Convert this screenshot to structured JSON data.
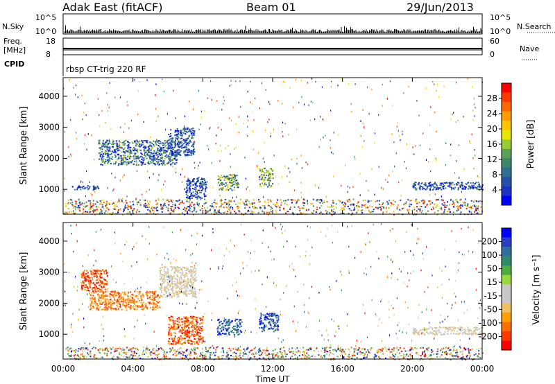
{
  "header": {
    "station": "Adak East (fitACF)",
    "beam": "Beam 01",
    "date": "29/Jun/2013"
  },
  "noise_panel": {
    "left_label": "N.Sky",
    "right_label": "N.Search",
    "left_ticks": [
      "10^5",
      "10^0"
    ],
    "right_ticks": [
      "10^5",
      "10^0"
    ]
  },
  "freq_panel": {
    "left_label_1": "Freq.",
    "left_label_2": "[MHz]",
    "right_label": "Nave",
    "left_ticks": [
      "18",
      "8"
    ],
    "right_ticks": [
      "60",
      "0"
    ]
  },
  "cpid_panel": {
    "label": "CPID",
    "program": "rbsp CT-trig 220 RF"
  },
  "chart_data": [
    {
      "type": "heatmap",
      "name": "power",
      "ylabel": "Slant Range [km]",
      "xlabel": "",
      "yticks": [
        "1000",
        "2000",
        "3000",
        "4000"
      ],
      "ylim": [
        200,
        4600
      ],
      "xlim": [
        0,
        24
      ],
      "colorbar": {
        "label": "Power [dB]",
        "ticks": [
          "28",
          "24",
          "20",
          "16",
          "12",
          "8",
          "4"
        ],
        "colors": [
          "#ff0000",
          "#ff3a00",
          "#ff6a00",
          "#ff9a00",
          "#ffc400",
          "#e6e600",
          "#98cc33",
          "#5aa05a",
          "#3a8a6a",
          "#2f6f8f",
          "#254fa8",
          "#1d33c8",
          "#0000ff"
        ]
      },
      "features": [
        {
          "t0": 0.5,
          "t1": 2.0,
          "r0": 1000,
          "r1": 1150,
          "level": "low"
        },
        {
          "t0": 2.0,
          "t1": 6.5,
          "r0": 1800,
          "r1": 2600,
          "level": "low-mid"
        },
        {
          "t0": 6.0,
          "t1": 7.5,
          "r0": 2100,
          "r1": 3000,
          "level": "low"
        },
        {
          "t0": 7.0,
          "t1": 8.2,
          "r0": 700,
          "r1": 1400,
          "level": "low"
        },
        {
          "t0": 8.8,
          "t1": 10.0,
          "r0": 1000,
          "r1": 1500,
          "level": "mid"
        },
        {
          "t0": 11.2,
          "t1": 12.0,
          "r0": 1100,
          "r1": 1700,
          "level": "mid"
        },
        {
          "t0": 20.0,
          "t1": 24.0,
          "r0": 1000,
          "r1": 1250,
          "level": "low"
        },
        {
          "t0": 0.0,
          "t1": 24.0,
          "r0": 200,
          "r1": 700,
          "level": "mixed"
        }
      ]
    },
    {
      "type": "heatmap",
      "name": "velocity",
      "ylabel": "Slant Range [km]",
      "xlabel": "Time UT",
      "yticks": [
        "1000",
        "2000",
        "3000",
        "4000"
      ],
      "xticks": [
        "00:00",
        "04:00",
        "08:00",
        "12:00",
        "16:00",
        "20:00",
        "00:00"
      ],
      "ylim": [
        200,
        4600
      ],
      "xlim": [
        0,
        24
      ],
      "colorbar": {
        "label": "Velocity [m s⁻¹]",
        "ticks": [
          "200",
          "100",
          "50",
          "15",
          "-15",
          "-50",
          "-100",
          "-200"
        ],
        "colors": [
          "#0000ff",
          "#2a3ec0",
          "#2e6fa0",
          "#2e8a6a",
          "#4cae3c",
          "#9ad83a",
          "#c8c8c8",
          "#c8c8c8",
          "#f0c060",
          "#ffa000",
          "#ff7000",
          "#ff3800",
          "#ff0000"
        ]
      },
      "features": [
        {
          "t0": 1.0,
          "t1": 2.5,
          "r0": 2400,
          "r1": 3100,
          "level": "neg-high"
        },
        {
          "t0": 1.5,
          "t1": 5.5,
          "r0": 1800,
          "r1": 2400,
          "level": "neg-mid"
        },
        {
          "t0": 5.5,
          "t1": 7.6,
          "r0": 2200,
          "r1": 3200,
          "level": "near-zero"
        },
        {
          "t0": 6.0,
          "t1": 8.0,
          "r0": 700,
          "r1": 1600,
          "level": "neg-high"
        },
        {
          "t0": 8.8,
          "t1": 10.2,
          "r0": 1000,
          "r1": 1500,
          "level": "pos-high"
        },
        {
          "t0": 11.2,
          "t1": 12.3,
          "r0": 1100,
          "r1": 1700,
          "level": "pos-high"
        },
        {
          "t0": 20.0,
          "t1": 24.0,
          "r0": 1000,
          "r1": 1250,
          "level": "near-zero"
        },
        {
          "t0": 0.0,
          "t1": 24.0,
          "r0": 200,
          "r1": 600,
          "level": "mixed"
        }
      ]
    }
  ]
}
